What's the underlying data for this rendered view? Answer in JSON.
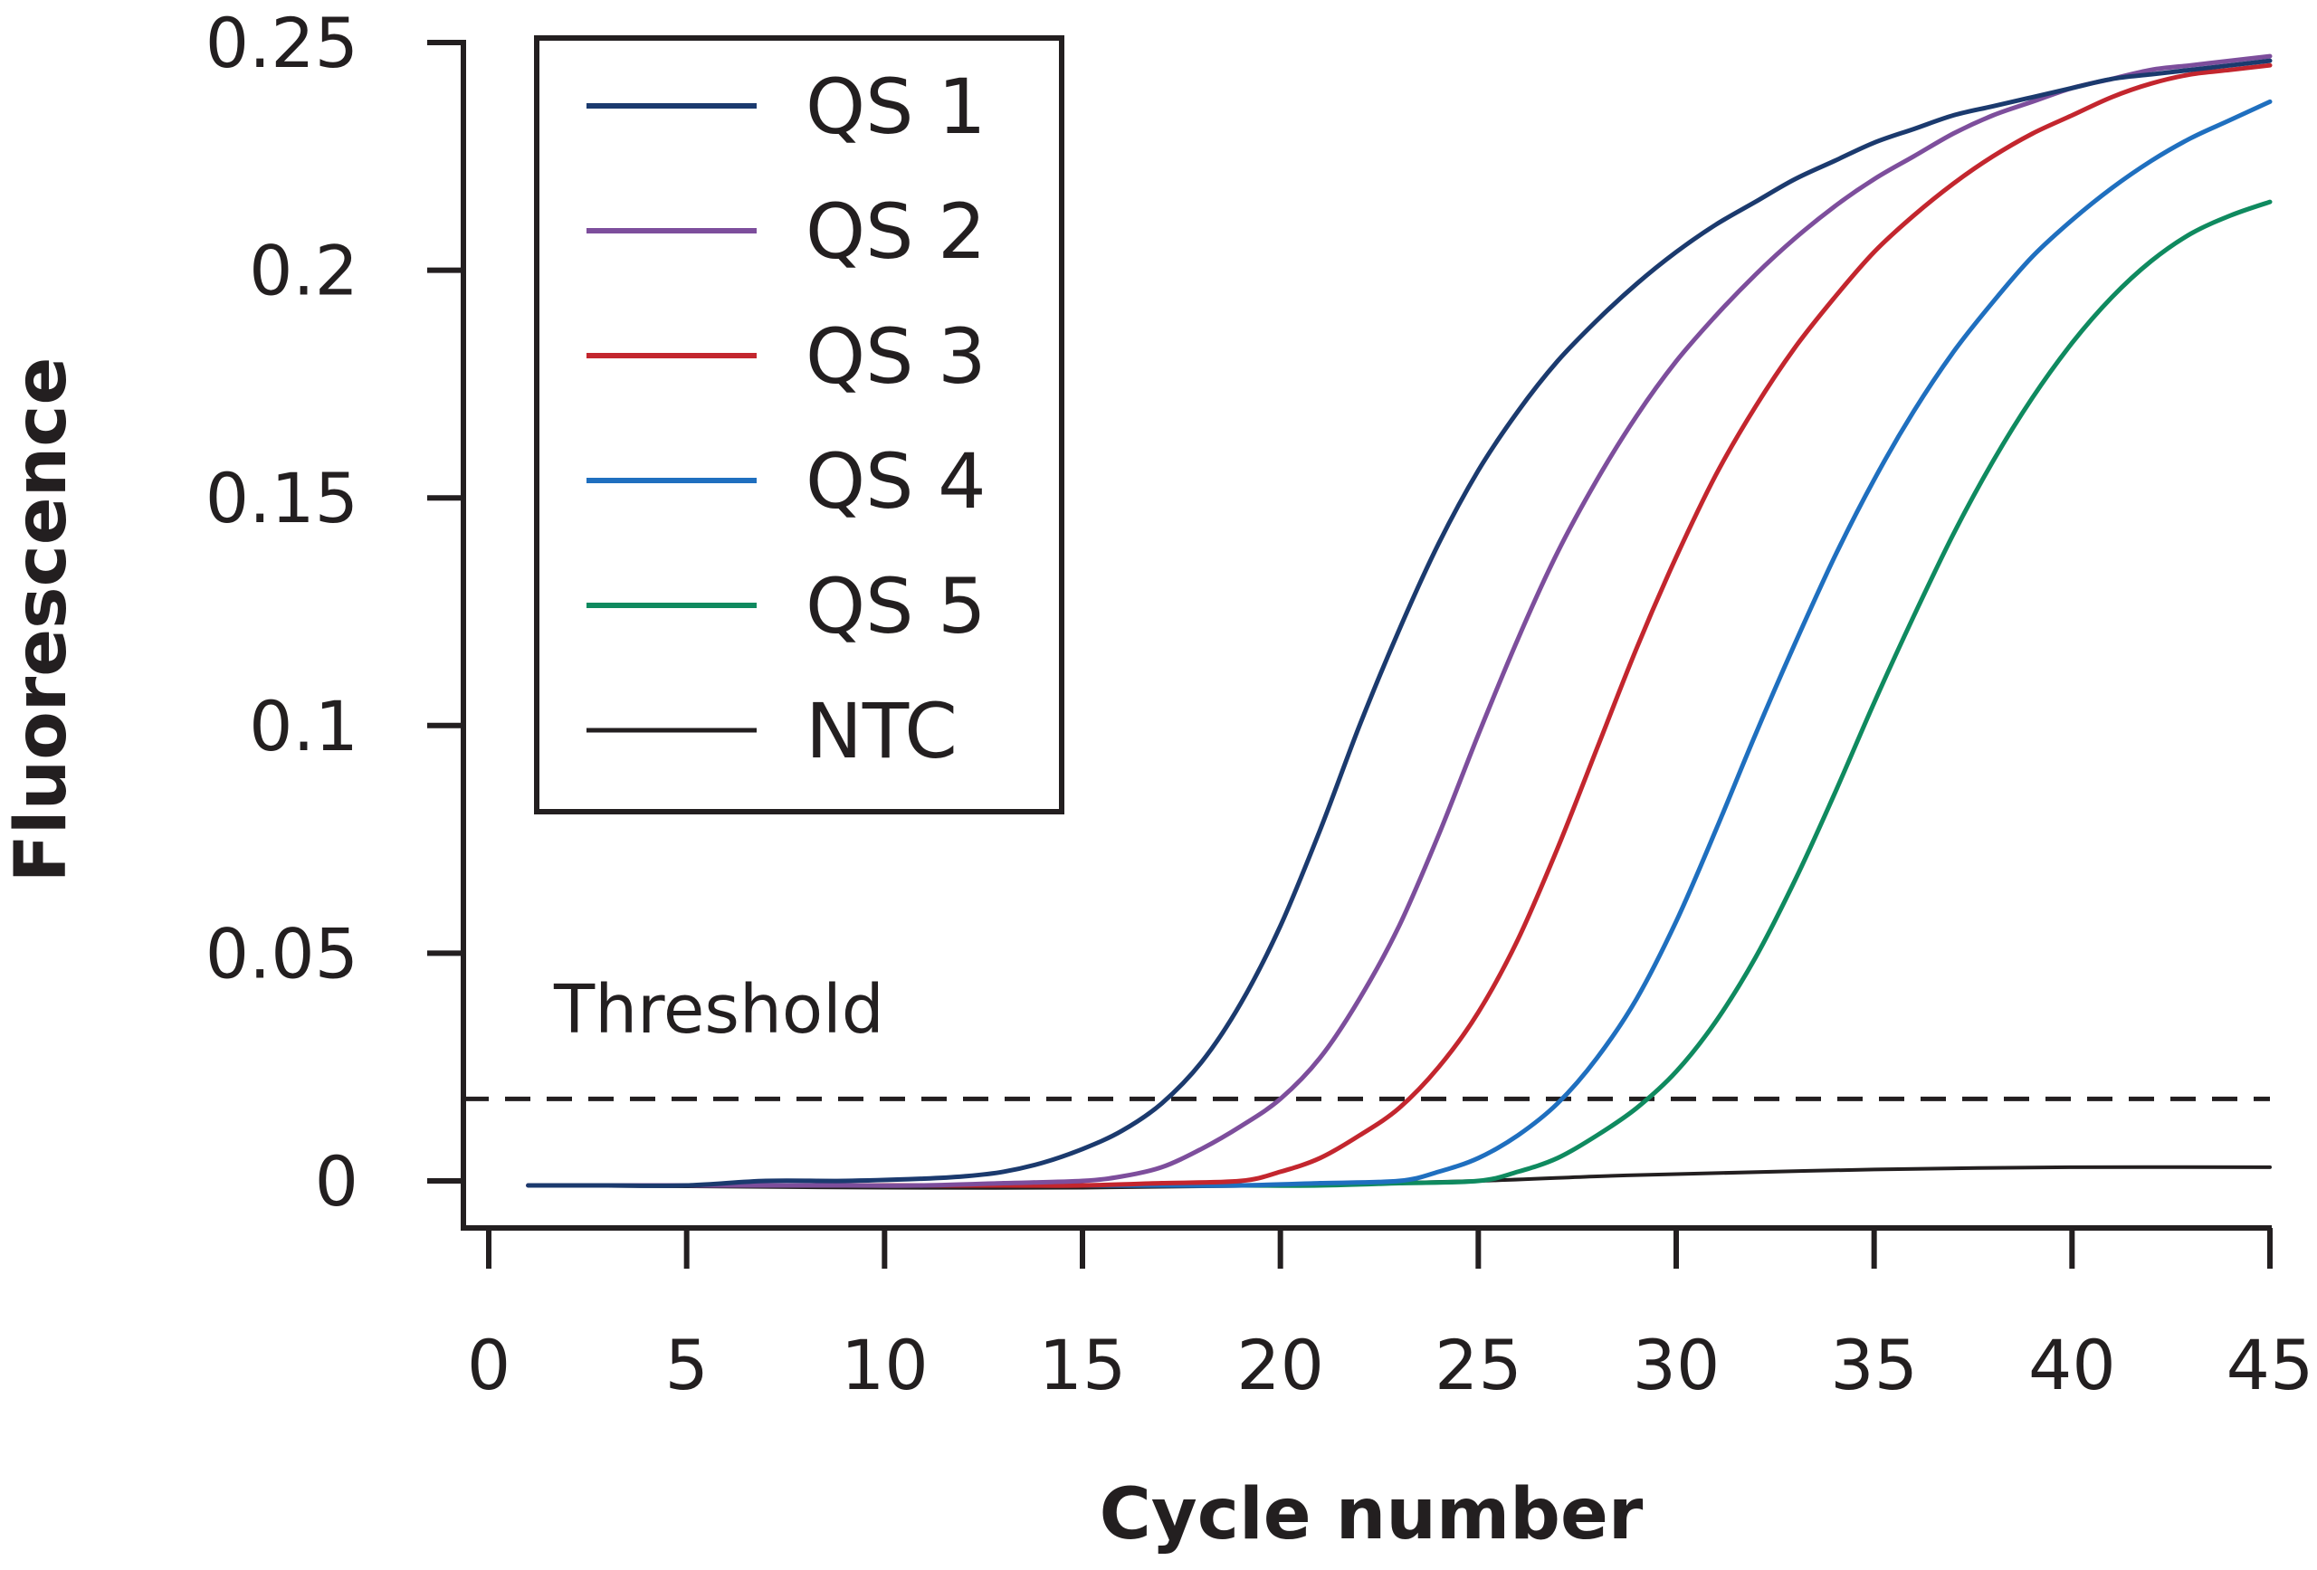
{
  "chart_data": {
    "type": "line",
    "title": "",
    "xlabel": "Cycle number",
    "ylabel": "Fluorescence",
    "xlim": [
      0,
      45
    ],
    "ylim": [
      -0.02,
      0.25
    ],
    "xticks": [
      0,
      5,
      10,
      15,
      20,
      25,
      30,
      35,
      40,
      45
    ],
    "xtick_labels": [
      "0",
      "5",
      "10",
      "15",
      "20",
      "25",
      "30",
      "35",
      "40",
      "45"
    ],
    "yticks": [
      0,
      0.05,
      0.1,
      0.15,
      0.2,
      0.25
    ],
    "ytick_labels": [
      "0",
      "0.05",
      "0.1",
      "0.15",
      "0.2",
      "0.25"
    ],
    "grid": false,
    "legend_position": "top-left",
    "threshold": {
      "label": "Threshold",
      "value": 0.018,
      "style": "dashed"
    },
    "series": [
      {
        "name": "QS 1",
        "color": "#1b3a6e",
        "x": [
          1,
          3,
          5,
          7,
          9,
          11,
          12,
          13,
          14,
          15,
          16,
          17,
          18,
          19,
          20,
          21,
          22,
          23,
          24,
          25,
          26,
          27,
          28,
          29,
          30,
          31,
          32,
          33,
          34,
          35,
          36,
          37,
          38,
          39,
          40,
          41,
          42,
          43,
          44,
          45
        ],
        "y": [
          -0.001,
          -0.001,
          -0.001,
          0.0,
          0.0,
          0.0005,
          0.001,
          0.002,
          0.004,
          0.007,
          0.011,
          0.017,
          0.026,
          0.039,
          0.056,
          0.077,
          0.1,
          0.121,
          0.14,
          0.156,
          0.169,
          0.18,
          0.189,
          0.197,
          0.204,
          0.21,
          0.215,
          0.22,
          0.224,
          0.228,
          0.231,
          0.234,
          0.236,
          0.238,
          0.24,
          0.242,
          0.243,
          0.244,
          0.245,
          0.246
        ]
      },
      {
        "name": "QS 2",
        "color": "#7d4e9c",
        "x": [
          1,
          3,
          5,
          7,
          9,
          11,
          13,
          15,
          16,
          17,
          18,
          19,
          20,
          21,
          22,
          23,
          24,
          25,
          26,
          27,
          28,
          29,
          30,
          31,
          32,
          33,
          34,
          35,
          36,
          37,
          38,
          39,
          40,
          41,
          42,
          43,
          44,
          45
        ],
        "y": [
          -0.001,
          -0.001,
          -0.001,
          -0.001,
          -0.001,
          -0.001,
          -0.0005,
          0.0,
          0.001,
          0.003,
          0.007,
          0.012,
          0.018,
          0.027,
          0.04,
          0.056,
          0.076,
          0.098,
          0.119,
          0.138,
          0.154,
          0.168,
          0.18,
          0.19,
          0.199,
          0.207,
          0.214,
          0.22,
          0.225,
          0.23,
          0.234,
          0.237,
          0.24,
          0.242,
          0.244,
          0.245,
          0.246,
          0.247
        ]
      },
      {
        "name": "QS 3",
        "color": "#c3262e",
        "x": [
          1,
          3,
          5,
          7,
          9,
          11,
          13,
          15,
          17,
          19,
          20,
          21,
          22,
          23,
          24,
          25,
          26,
          27,
          28,
          29,
          30,
          31,
          32,
          33,
          34,
          35,
          36,
          37,
          38,
          39,
          40,
          41,
          42,
          43,
          44,
          45
        ],
        "y": [
          -0.001,
          -0.001,
          -0.001,
          -0.001,
          -0.001,
          -0.001,
          -0.001,
          -0.001,
          -0.0005,
          0.0,
          0.002,
          0.005,
          0.01,
          0.016,
          0.025,
          0.037,
          0.053,
          0.073,
          0.095,
          0.117,
          0.137,
          0.155,
          0.17,
          0.183,
          0.194,
          0.204,
          0.212,
          0.219,
          0.225,
          0.23,
          0.234,
          0.238,
          0.241,
          0.243,
          0.244,
          0.245
        ]
      },
      {
        "name": "QS 4",
        "color": "#1f6fbf",
        "x": [
          1,
          3,
          5,
          7,
          9,
          11,
          13,
          15,
          17,
          19,
          21,
          23,
          24,
          25,
          26,
          27,
          28,
          29,
          30,
          31,
          32,
          33,
          34,
          35,
          36,
          37,
          38,
          39,
          40,
          41,
          42,
          43,
          44,
          45
        ],
        "y": [
          -0.001,
          -0.001,
          -0.001,
          -0.001,
          -0.001,
          -0.001,
          -0.001,
          -0.001,
          -0.001,
          -0.001,
          -0.0005,
          0.0,
          0.002,
          0.005,
          0.01,
          0.017,
          0.027,
          0.04,
          0.057,
          0.077,
          0.098,
          0.118,
          0.137,
          0.154,
          0.169,
          0.182,
          0.193,
          0.203,
          0.211,
          0.218,
          0.224,
          0.229,
          0.233,
          0.237
        ]
      },
      {
        "name": "QS 5",
        "color": "#0f8a5f",
        "x": [
          1,
          3,
          5,
          7,
          9,
          11,
          13,
          15,
          17,
          19,
          21,
          23,
          25,
          26,
          27,
          28,
          29,
          30,
          31,
          32,
          33,
          34,
          35,
          36,
          37,
          38,
          39,
          40,
          41,
          42,
          43,
          44,
          45
        ],
        "y": [
          -0.001,
          -0.001,
          -0.001,
          -0.001,
          -0.001,
          -0.001,
          -0.001,
          -0.001,
          -0.001,
          -0.001,
          -0.001,
          -0.0005,
          0.0,
          0.002,
          0.005,
          0.01,
          0.016,
          0.024,
          0.035,
          0.049,
          0.066,
          0.085,
          0.105,
          0.124,
          0.142,
          0.158,
          0.172,
          0.184,
          0.194,
          0.202,
          0.208,
          0.212,
          0.215
        ]
      },
      {
        "name": "NTC",
        "color": "#231f20",
        "x": [
          1,
          5,
          10,
          15,
          20,
          25,
          28,
          30,
          35,
          40,
          45
        ],
        "y": [
          -0.001,
          -0.0012,
          -0.0015,
          -0.0015,
          -0.001,
          0.0,
          0.001,
          0.0015,
          0.0025,
          0.003,
          0.003
        ]
      }
    ]
  }
}
